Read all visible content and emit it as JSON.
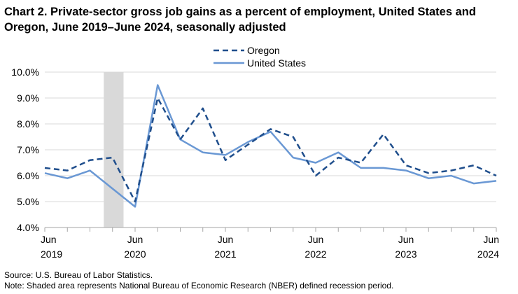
{
  "title": "Chart 2. Private-sector gross job gains as a percent of employment, United States and Oregon, June 2019–June 2024, seasonally adjusted",
  "source": "Source: U.S. Bureau of Labor Statistics.",
  "note": "Note: Shaded area represents National Bureau of Economic Research (NBER) defined recession period.",
  "chart_data": {
    "type": "line",
    "x": [
      "2019Q2",
      "2019Q3",
      "2019Q4",
      "2020Q1",
      "2020Q2",
      "2020Q3",
      "2020Q4",
      "2021Q1",
      "2021Q2",
      "2021Q3",
      "2021Q4",
      "2022Q1",
      "2022Q2",
      "2022Q3",
      "2022Q4",
      "2023Q1",
      "2023Q2",
      "2023Q3",
      "2023Q4",
      "2024Q1",
      "2024Q2"
    ],
    "series": [
      {
        "name": "Oregon",
        "color": "#1f4e8c",
        "style": "dashed",
        "values": [
          6.3,
          6.2,
          6.6,
          6.7,
          5.0,
          9.0,
          7.4,
          8.6,
          6.6,
          7.2,
          7.8,
          7.5,
          6.0,
          6.7,
          6.5,
          7.6,
          6.4,
          6.1,
          6.2,
          6.4,
          6.0
        ]
      },
      {
        "name": "United States",
        "color": "#6a98d4",
        "style": "solid",
        "values": [
          6.1,
          5.9,
          6.2,
          5.5,
          4.8,
          9.5,
          7.4,
          6.9,
          6.8,
          7.3,
          7.7,
          6.7,
          6.5,
          6.9,
          6.3,
          6.3,
          6.2,
          5.9,
          6.0,
          5.7,
          5.8
        ]
      }
    ],
    "ylim": [
      4.0,
      10.0
    ],
    "y_ticks": [
      "4.0%",
      "5.0%",
      "6.0%",
      "7.0%",
      "8.0%",
      "9.0%",
      "10.0%"
    ],
    "x_tick_labels": [
      {
        "month": "Jun",
        "year": "2019"
      },
      {
        "month": "Jun",
        "year": "2020"
      },
      {
        "month": "Jun",
        "year": "2021"
      },
      {
        "month": "Jun",
        "year": "2022"
      },
      {
        "month": "Jun",
        "year": "2023"
      },
      {
        "month": "Jun",
        "year": "2024"
      }
    ],
    "recession": {
      "start": "2020Q1",
      "end": "2020Q2",
      "color": "#d9d9d9"
    },
    "grid": true,
    "legend": "top-center"
  }
}
